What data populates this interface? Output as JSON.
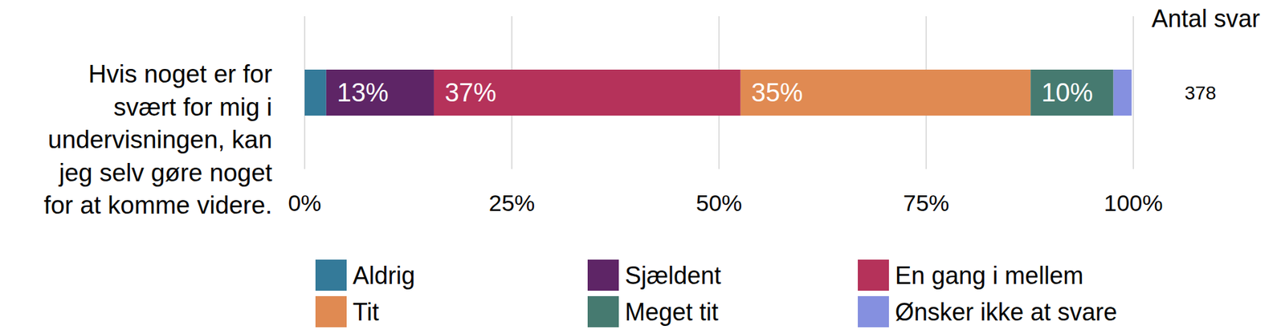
{
  "chart_data": {
    "type": "bar",
    "orientation": "horizontal",
    "stacked": true,
    "grid": true,
    "data_labels": true,
    "legend": "bottom",
    "categories": [
      "Hvis noget er for svært for mig i undervisningen, kan jeg selv gøre noget for at komme videre."
    ],
    "xlim": [
      0,
      100
    ],
    "xticks": [
      {
        "value": 0,
        "label": "0%"
      },
      {
        "value": 25,
        "label": "25%"
      },
      {
        "value": 50,
        "label": "50%"
      },
      {
        "value": 75,
        "label": "75%"
      },
      {
        "value": 100,
        "label": "100%"
      }
    ],
    "n_title": "Antal svar",
    "n": [
      378
    ],
    "series": [
      {
        "name": "Aldrig",
        "color": "#347a99",
        "values": [
          2.6
        ],
        "value_labels": [
          null
        ]
      },
      {
        "name": "Sjældent",
        "color": "#5e2566",
        "values": [
          13
        ],
        "value_labels": [
          "13%"
        ]
      },
      {
        "name": "En gang i mellem",
        "color": "#b5325a",
        "values": [
          37
        ],
        "value_labels": [
          "37%"
        ]
      },
      {
        "name": "Tit",
        "color": "#e08a52",
        "values": [
          35
        ],
        "value_labels": [
          "35%"
        ]
      },
      {
        "name": "Meget tit",
        "color": "#467a70",
        "values": [
          10
        ],
        "value_labels": [
          "10%"
        ]
      },
      {
        "name": "Ønsker ikke at svare",
        "color": "#8590e0",
        "values": [
          2.2
        ],
        "value_labels": [
          null
        ]
      }
    ]
  }
}
